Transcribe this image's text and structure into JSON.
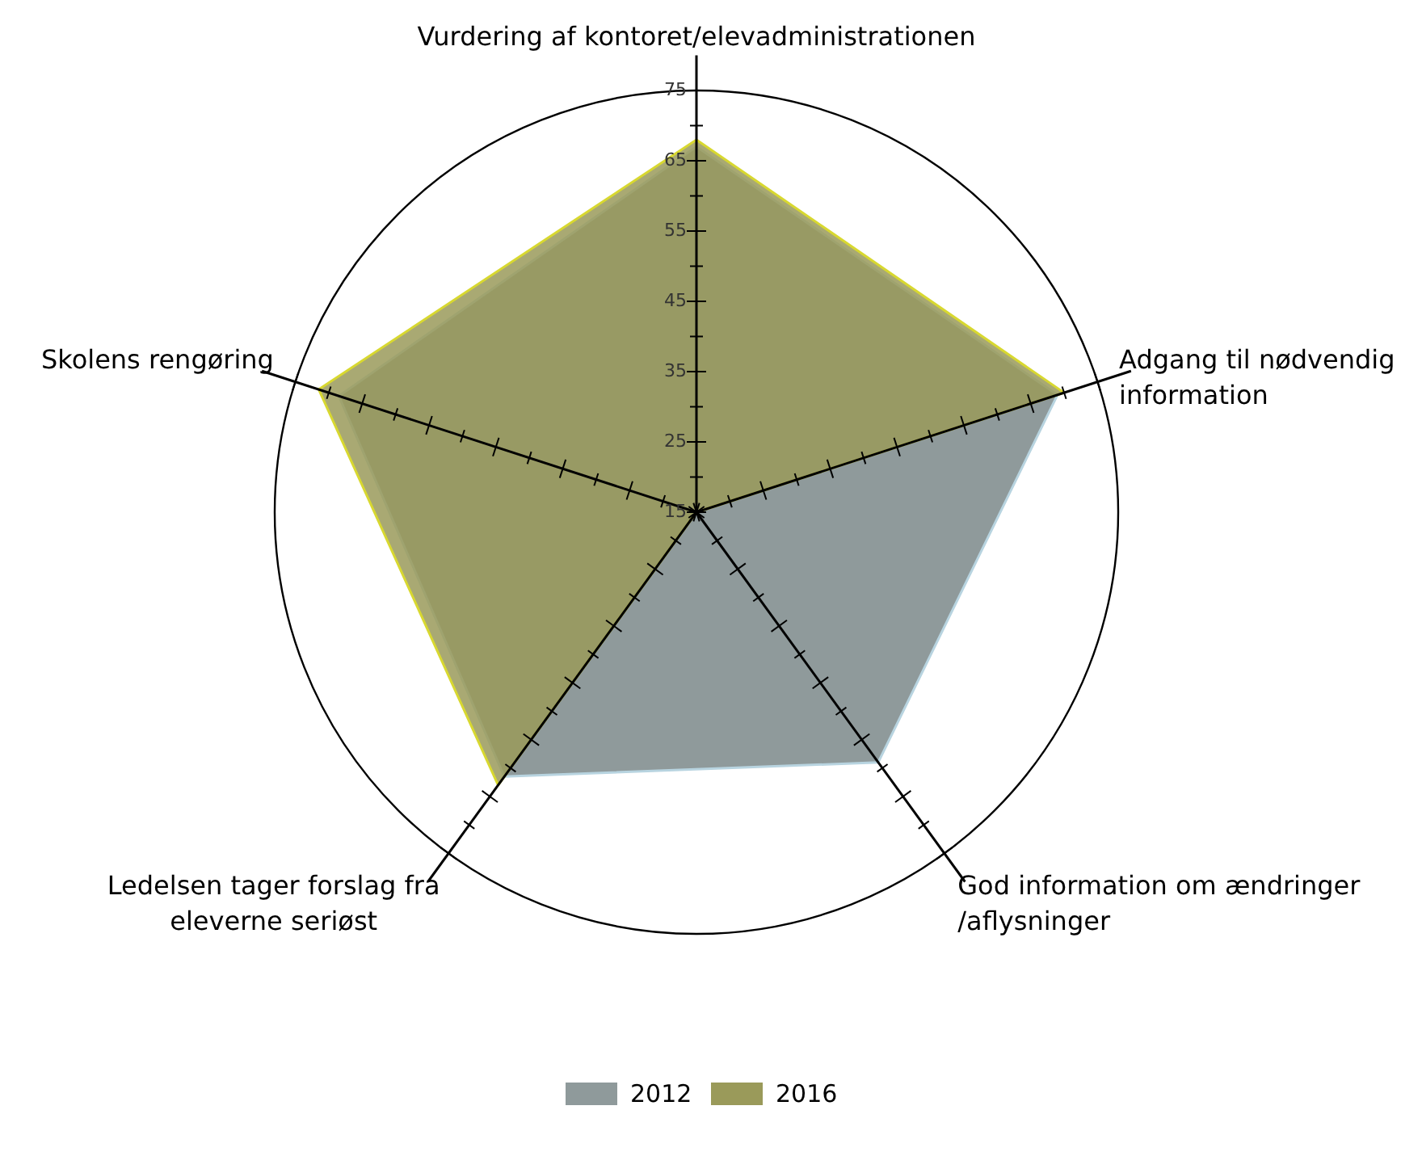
{
  "chart_data": {
    "type": "radar",
    "categories": [
      "Vurdering af kontoret/elevadministrationen",
      "Adgang til nødvendig\ninformation",
      "God information om ændringer\n/aflysninger",
      "Ledelsen tager forslag fra\neleverne seriøst",
      "Skolens rengøring"
    ],
    "series": [
      {
        "name": "2012",
        "color": "#8f9a9b",
        "values": [
          67,
          69,
          59,
          61.5,
          68.5
        ]
      },
      {
        "name": "2016",
        "color": "#9a9a5a",
        "values": [
          68,
          70,
          15,
          63,
          71.5
        ]
      }
    ],
    "ylim": [
      15,
      75
    ],
    "yticks": [
      15,
      25,
      35,
      45,
      55,
      65,
      75
    ],
    "legend": "bottom"
  }
}
